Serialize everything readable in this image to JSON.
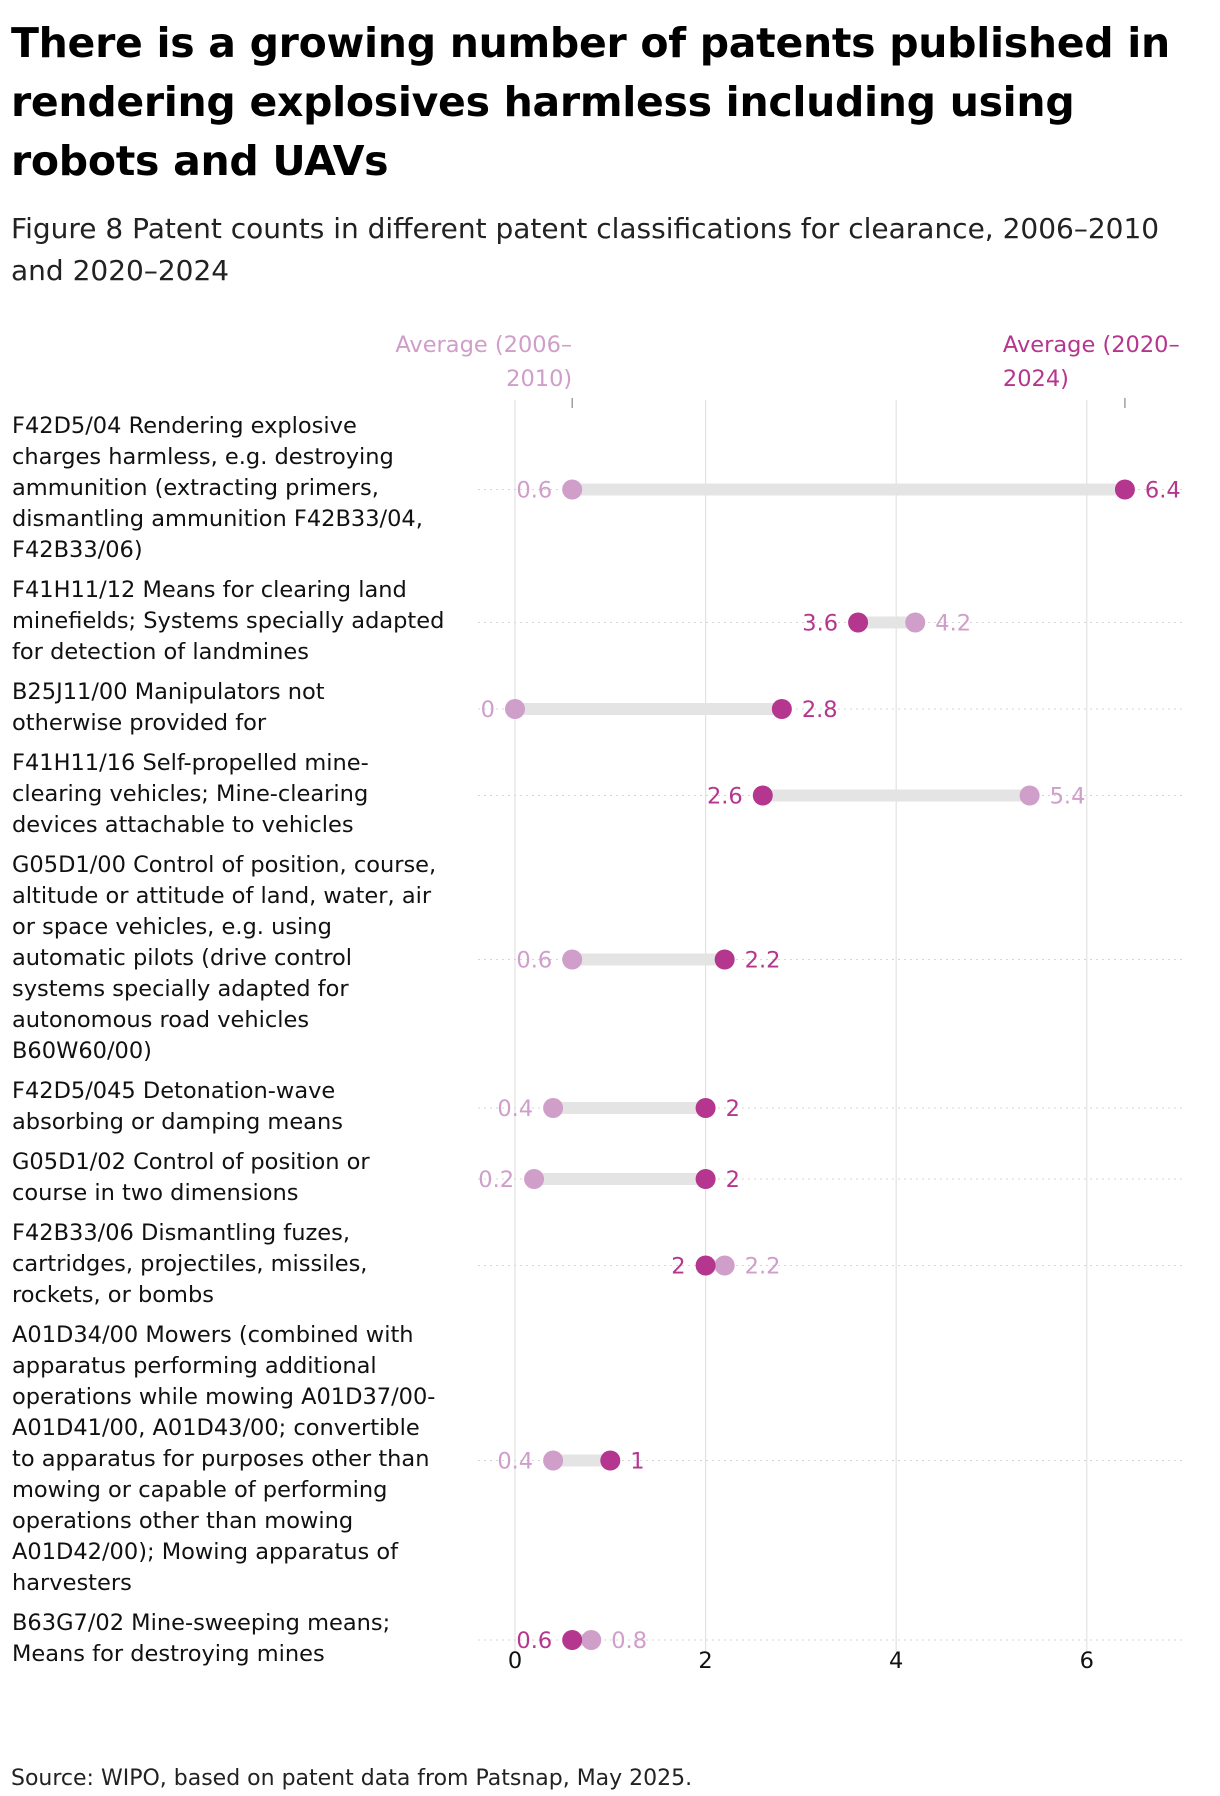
{
  "title": "There is a growing number of patents published in rendering explosives harmless including using robots and UAVs",
  "subtitle": "Figure 8 Patent counts in different patent classifications for clearance, 2006–2010 and 2020–2024",
  "source": "Source: WIPO, based on patent data from Patsnap, May 2025.",
  "colors": {
    "early": "#cf9ec9",
    "late": "#b5368f",
    "connector": "#e4e4e4",
    "grid": "#e2e2e2"
  },
  "chart_data": {
    "type": "dumbbell",
    "xlim": [
      0,
      7
    ],
    "xticks": [
      0,
      2,
      4,
      6
    ],
    "grid": "vertical",
    "legend": [
      {
        "name": "Average (2006–2010)",
        "lines": [
          "Average (2006–",
          "2010)"
        ],
        "series": "early"
      },
      {
        "name": "Average (2020–2024)",
        "lines": [
          "Average (2020–",
          "2024)"
        ],
        "series": "late"
      }
    ],
    "categories": [
      {
        "lines": [
          "F42D5/04 Rendering explosive",
          "charges harmless, e.g. destroying",
          "ammunition (extracting primers,",
          "dismantling ammunition F42B33/04,",
          "F42B33/06)"
        ],
        "early": 0.6,
        "late": 6.4,
        "early_label": "0.6",
        "late_label": "6.4"
      },
      {
        "lines": [
          "F41H11/12 Means for clearing land",
          "minefields; Systems specially adapted",
          "for detection of landmines"
        ],
        "early": 4.2,
        "late": 3.6,
        "early_label": "4.2",
        "late_label": "3.6"
      },
      {
        "lines": [
          "B25J11/00 Manipulators not",
          "otherwise provided for"
        ],
        "early": 0,
        "late": 2.8,
        "early_label": "0",
        "late_label": "2.8"
      },
      {
        "lines": [
          "F41H11/16 Self-propelled mine-",
          "clearing vehicles; Mine-clearing",
          "devices attachable to vehicles"
        ],
        "early": 5.4,
        "late": 2.6,
        "early_label": "5.4",
        "late_label": "2.6"
      },
      {
        "lines": [
          "G05D1/00 Control of position, course,",
          "altitude or attitude of land, water, air",
          "or space vehicles, e.g. using",
          "automatic pilots (drive control",
          "systems specially adapted for",
          "autonomous road vehicles",
          "B60W60/00)"
        ],
        "early": 0.6,
        "late": 2.2,
        "early_label": "0.6",
        "late_label": "2.2"
      },
      {
        "lines": [
          "F42D5/045 Detonation-wave",
          "absorbing or damping means"
        ],
        "early": 0.4,
        "late": 2,
        "early_label": "0.4",
        "late_label": "2"
      },
      {
        "lines": [
          "G05D1/02 Control of position or",
          "course in two dimensions"
        ],
        "early": 0.2,
        "late": 2,
        "early_label": "0.2",
        "late_label": "2"
      },
      {
        "lines": [
          "F42B33/06 Dismantling fuzes,",
          "cartridges, projectiles, missiles,",
          "rockets, or bombs"
        ],
        "early": 2.2,
        "late": 2,
        "early_label": "2.2",
        "late_label": "2"
      },
      {
        "lines": [
          "A01D34/00 Mowers (combined with",
          "apparatus performing additional",
          "operations while mowing A01D37/00-",
          "A01D41/00, A01D43/00; convertible",
          "to apparatus for purposes other than",
          "mowing or capable of performing",
          "operations other than mowing",
          "A01D42/00); Mowing apparatus of",
          "harvesters"
        ],
        "early": 0.4,
        "late": 1,
        "early_label": "0.4",
        "late_label": "1"
      },
      {
        "lines": [
          "B63G7/02 Mine-sweeping means;",
          "Means for destroying mines"
        ],
        "early": 0.8,
        "late": 0.6,
        "early_label": "0.8",
        "late_label": "0.6"
      }
    ]
  }
}
